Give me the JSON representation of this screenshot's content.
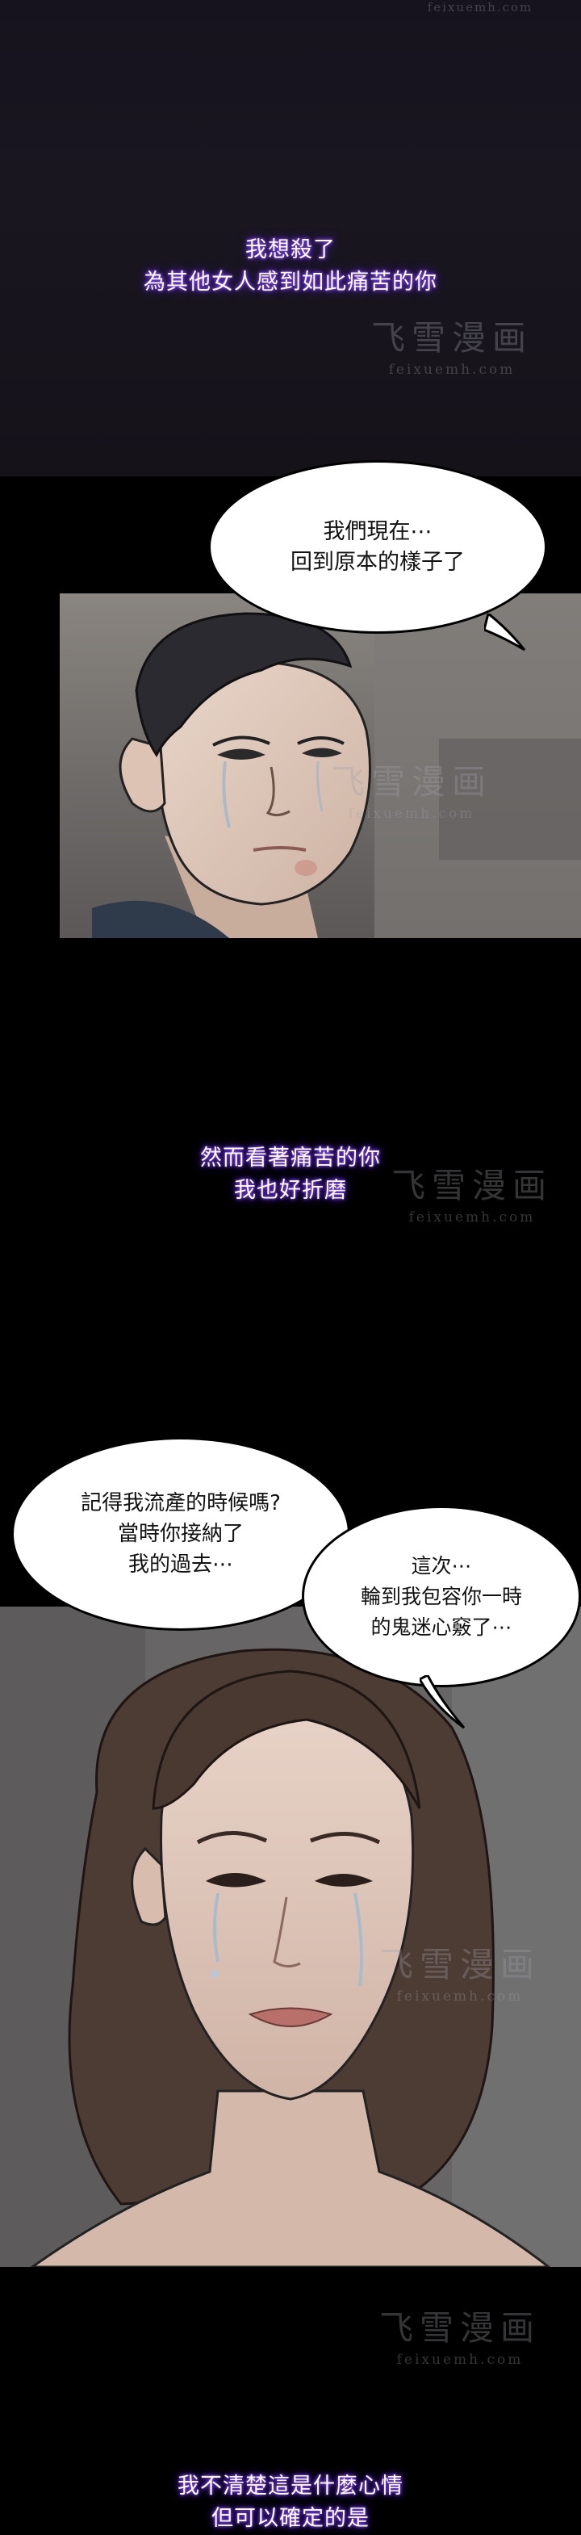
{
  "watermark": {
    "top_text": "feixuemh.com",
    "brand": "飞雪漫画",
    "site": "feixuemh.com"
  },
  "narrations": [
    {
      "lines": [
        "我想殺了",
        "為其他女人感到如此痛苦的你"
      ]
    },
    {
      "lines": [
        "然而看著痛苦的你",
        "我也好折磨"
      ]
    },
    {
      "lines": [
        "我不清楚這是什麼心情",
        "但可以確定的是"
      ]
    }
  ],
  "bubbles": {
    "man": [
      "我們現在⋯",
      "回到原本的樣子了"
    ],
    "woman_left": [
      "記得我流產的時候嗎?",
      "當時你接納了",
      "我的過去⋯"
    ],
    "woman_right": [
      "這次⋯",
      "輪到我包容你一時",
      "的鬼迷心竅了⋯"
    ]
  },
  "colors": {
    "glow": "#7a3cff",
    "background": "#000000",
    "bubble_fill": "#ffffff"
  }
}
